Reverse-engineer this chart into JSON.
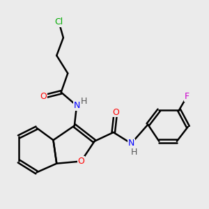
{
  "background_color": "#ebebeb",
  "bond_color": "#000000",
  "bond_width": 1.8,
  "atom_colors": {
    "O": "#ff0000",
    "N": "#0000ff",
    "H": "#555555",
    "Cl": "#00aa00",
    "F": "#cc00cc",
    "C": "#000000"
  },
  "font_size": 9,
  "figsize": [
    3.0,
    3.0
  ],
  "dpi": 100
}
